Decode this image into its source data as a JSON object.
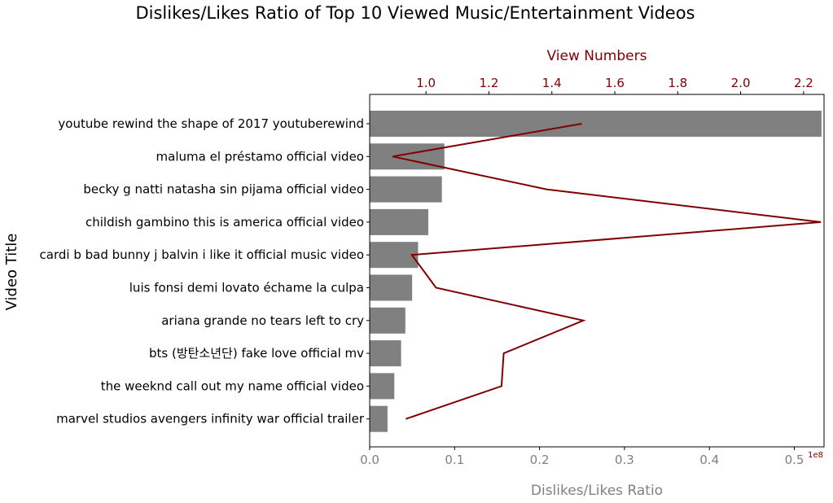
{
  "chart_data": {
    "type": "bar",
    "orientation": "horizontal",
    "title": "Dislikes/Likes Ratio of Top 10 Viewed Music/Entertainment Videos",
    "ylabel": "Video Title",
    "xlabel_bottom": "Dislikes/Likes Ratio",
    "xlabel_top": "View Numbers",
    "top_axis_exponent": "1e8",
    "categories": [
      "youtube rewind the shape of 2017 youtuberewind",
      "maluma el préstamo official video",
      "becky g natti natasha sin pijama official video",
      "childish gambino this is america official video",
      "cardi b bad bunny j balvin i like it official music video",
      "luis fonsi demi lovato échame la culpa",
      "ariana grande no tears left to cry",
      "bts (방탄소년단) fake love official mv",
      "the weeknd call out my name official video",
      "marvel studios avengers infinity war official trailer"
    ],
    "series": [
      {
        "name": "Dislikes/Likes Ratio",
        "type": "bar",
        "axis": "bottom",
        "color": "#808080",
        "values": [
          0.532,
          0.088,
          0.085,
          0.069,
          0.057,
          0.05,
          0.042,
          0.037,
          0.029,
          0.021
        ]
      },
      {
        "name": "View Numbers",
        "type": "line",
        "axis": "top",
        "color": "#800000",
        "values": [
          1.495,
          0.894,
          1.383,
          2.255,
          0.955,
          1.032,
          1.5,
          1.247,
          1.24,
          0.936
        ]
      }
    ],
    "bottom_axis": {
      "range": [
        0,
        0.535
      ],
      "ticks": [
        0.0,
        0.1,
        0.2,
        0.3,
        0.4,
        0.5
      ],
      "tick_labels": [
        "0.0",
        "0.1",
        "0.2",
        "0.3",
        "0.4",
        "0.5"
      ]
    },
    "top_axis": {
      "range": [
        0.821,
        2.265
      ],
      "ticks": [
        1.0,
        1.2,
        1.4,
        1.6,
        1.8,
        2.0,
        2.2
      ],
      "tick_labels": [
        "1.0",
        "1.2",
        "1.4",
        "1.6",
        "1.8",
        "2.0",
        "2.2"
      ]
    },
    "grid": false,
    "legend": "none"
  }
}
